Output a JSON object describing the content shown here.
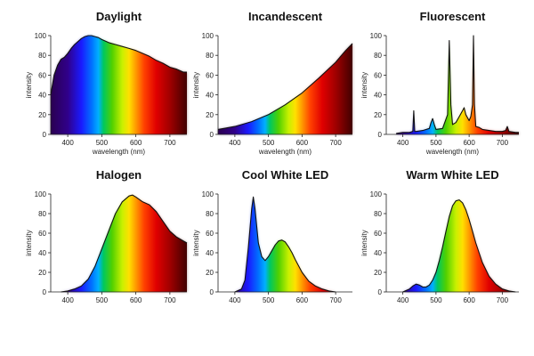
{
  "colors": {
    "background": "#ffffff",
    "axes": "#222222",
    "curve": "#111111",
    "spectrum": [
      "#2a0050",
      "#1a1aff",
      "#00a0ff",
      "#00c050",
      "#c8ff00",
      "#ffe000",
      "#ff8000",
      "#e00000",
      "#500000"
    ]
  },
  "chart_data": [
    {
      "type": "area",
      "title": "Daylight",
      "xlabel": "wavelength (nm)",
      "ylabel": "intensity",
      "xlim": [
        350,
        750
      ],
      "ylim": [
        0,
        100
      ],
      "xticks": [
        400,
        500,
        600,
        700
      ],
      "yticks": [
        0,
        20,
        40,
        60,
        80,
        100
      ],
      "fill": "spectrum",
      "series": [
        {
          "x": [
            350,
            360,
            370,
            380,
            390,
            400,
            410,
            420,
            430,
            440,
            450,
            460,
            470,
            480,
            490,
            500,
            520,
            540,
            560,
            580,
            600,
            620,
            640,
            660,
            680,
            700,
            720,
            740,
            750
          ],
          "values": [
            40,
            60,
            70,
            76,
            78,
            82,
            87,
            91,
            94,
            97,
            99,
            100,
            100,
            99,
            98,
            96,
            93,
            91,
            89,
            87,
            85,
            82,
            79,
            75,
            72,
            68,
            66,
            63,
            63
          ]
        }
      ]
    },
    {
      "type": "area",
      "title": "Incandescent",
      "xlabel": "wavelength (nm)",
      "ylabel": "intensity",
      "xlim": [
        350,
        750
      ],
      "ylim": [
        0,
        100
      ],
      "xticks": [
        400,
        500,
        600,
        700
      ],
      "yticks": [
        0,
        20,
        40,
        60,
        80,
        100
      ],
      "fill": "spectrum",
      "series": [
        {
          "x": [
            350,
            400,
            450,
            500,
            550,
            600,
            650,
            700,
            730,
            750
          ],
          "values": [
            5,
            8,
            13,
            20,
            30,
            42,
            57,
            73,
            85,
            92
          ]
        }
      ]
    },
    {
      "type": "area",
      "title": "Fluorescent",
      "xlabel": "wavelength (nm)",
      "ylabel": "intensity",
      "xlim": [
        350,
        750
      ],
      "ylim": [
        0,
        100
      ],
      "xticks": [
        400,
        500,
        600,
        700
      ],
      "yticks": [
        0,
        20,
        40,
        60,
        80,
        100
      ],
      "fill": "spectrum",
      "series": [
        {
          "x": [
            380,
            400,
            420,
            430,
            433,
            436,
            440,
            460,
            480,
            485,
            490,
            495,
            500,
            520,
            535,
            540,
            545,
            550,
            560,
            570,
            580,
            585,
            590,
            600,
            605,
            610,
            613,
            616,
            620,
            630,
            640,
            660,
            680,
            700,
            710,
            715,
            720,
            740,
            750
          ],
          "values": [
            1,
            2,
            2,
            3,
            24,
            3,
            3,
            4,
            6,
            12,
            16,
            10,
            5,
            6,
            20,
            95,
            30,
            10,
            12,
            18,
            24,
            27,
            20,
            14,
            18,
            30,
            100,
            30,
            8,
            7,
            5,
            4,
            3,
            3,
            4,
            8,
            3,
            2,
            2
          ]
        }
      ]
    },
    {
      "type": "area",
      "title": "Halogen",
      "xlabel": "",
      "ylabel": "intensity",
      "xlim": [
        350,
        750
      ],
      "ylim": [
        0,
        100
      ],
      "xticks": [
        400,
        500,
        600,
        700
      ],
      "yticks": [
        0,
        20,
        40,
        60,
        80,
        100
      ],
      "fill": "spectrum",
      "series": [
        {
          "x": [
            380,
            400,
            420,
            440,
            460,
            480,
            500,
            520,
            540,
            560,
            580,
            590,
            600,
            620,
            640,
            660,
            680,
            700,
            720,
            740,
            750
          ],
          "values": [
            0,
            1,
            3,
            6,
            13,
            26,
            44,
            62,
            80,
            92,
            98,
            99,
            97,
            92,
            89,
            82,
            72,
            62,
            56,
            52,
            50
          ]
        }
      ]
    },
    {
      "type": "area",
      "title": "Cool White LED",
      "xlabel": "",
      "ylabel": "intensity",
      "xlim": [
        350,
        750
      ],
      "ylim": [
        0,
        100
      ],
      "xticks": [
        400,
        500,
        600,
        700
      ],
      "yticks": [
        0,
        20,
        40,
        60,
        80,
        100
      ],
      "fill": "spectrum",
      "series": [
        {
          "x": [
            400,
            420,
            430,
            440,
            450,
            455,
            460,
            470,
            480,
            490,
            500,
            510,
            520,
            530,
            540,
            550,
            560,
            570,
            580,
            600,
            620,
            640,
            660,
            680,
            700
          ],
          "values": [
            0,
            3,
            12,
            45,
            85,
            97,
            85,
            50,
            36,
            32,
            36,
            42,
            48,
            52,
            53,
            51,
            46,
            40,
            33,
            20,
            11,
            6,
            3,
            1,
            0
          ]
        }
      ]
    },
    {
      "type": "area",
      "title": "Warm White LED",
      "xlabel": "",
      "ylabel": "intensity",
      "xlim": [
        350,
        750
      ],
      "ylim": [
        0,
        100
      ],
      "xticks": [
        400,
        500,
        600,
        700
      ],
      "yticks": [
        0,
        20,
        40,
        60,
        80,
        100
      ],
      "fill": "spectrum",
      "series": [
        {
          "x": [
            400,
            420,
            430,
            440,
            450,
            460,
            470,
            480,
            490,
            500,
            510,
            520,
            530,
            540,
            550,
            560,
            570,
            580,
            590,
            600,
            610,
            620,
            640,
            660,
            680,
            700,
            720,
            740
          ],
          "values": [
            0,
            3,
            6,
            8,
            7,
            5,
            5,
            7,
            12,
            20,
            32,
            46,
            62,
            77,
            88,
            93,
            94,
            91,
            84,
            74,
            62,
            50,
            30,
            16,
            8,
            3,
            1,
            0
          ]
        }
      ]
    }
  ]
}
